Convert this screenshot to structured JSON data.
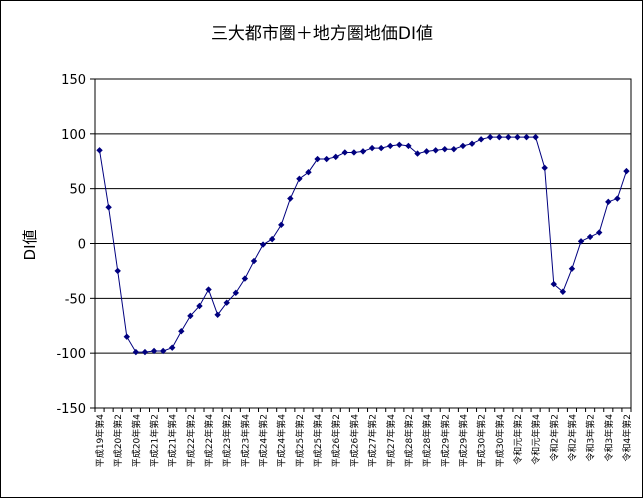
{
  "chart_data": {
    "type": "line",
    "title": "三大都市圏＋地方圏地価DI値",
    "ylabel": "DI値",
    "xlabel": "",
    "ylim": [
      -150,
      150
    ],
    "yticks": [
      150,
      100,
      50,
      0,
      -50,
      -100,
      -150
    ],
    "grid": "horizontal at 100, 50, -50, -100",
    "legend": "none",
    "colors": {
      "series": "#00007f",
      "grid": "#000000",
      "background": "#ffffff"
    },
    "categories": [
      "平成19年第4",
      "",
      "平成20年第2",
      "",
      "平成20年第4",
      "",
      "平成21年第2",
      "",
      "平成21年第4",
      "",
      "平成22年第2",
      "",
      "平成22年第4",
      "",
      "平成23年第2",
      "",
      "平成23年第4",
      "",
      "平成24年第2",
      "",
      "平成24年第4",
      "",
      "平成25年第2",
      "",
      "平成25年第4",
      "",
      "平成26年第2",
      "",
      "平成26年第4",
      "",
      "平成27年第2",
      "",
      "平成27年第4",
      "",
      "平成28年第2",
      "",
      "平成28年第4",
      "",
      "平成29年第2",
      "",
      "平成29年第4",
      "",
      "平成30年第2",
      "",
      "平成30年第4",
      "",
      "令和元年第2",
      "",
      "令和元年第4",
      "",
      "令和2年第2",
      "",
      "令和2年第4",
      "",
      "令和3年第2",
      "",
      "令和3年第4",
      "",
      "令和4年第2"
    ],
    "series": [
      {
        "values": [
          85,
          33,
          -25,
          -85,
          -99,
          -99,
          -98,
          -98,
          -95,
          -80,
          -66,
          -57,
          -42,
          -65,
          -54,
          -45,
          -32,
          -16,
          -1,
          4,
          17,
          41,
          59,
          65,
          77,
          77,
          79,
          83,
          83,
          84,
          87,
          87,
          89,
          90,
          89,
          82,
          84,
          85,
          86,
          86,
          89,
          91,
          95,
          97,
          97,
          97,
          97,
          97,
          97,
          69,
          -37,
          -44,
          -23,
          2,
          6,
          10,
          38,
          41,
          66
        ]
      }
    ]
  }
}
